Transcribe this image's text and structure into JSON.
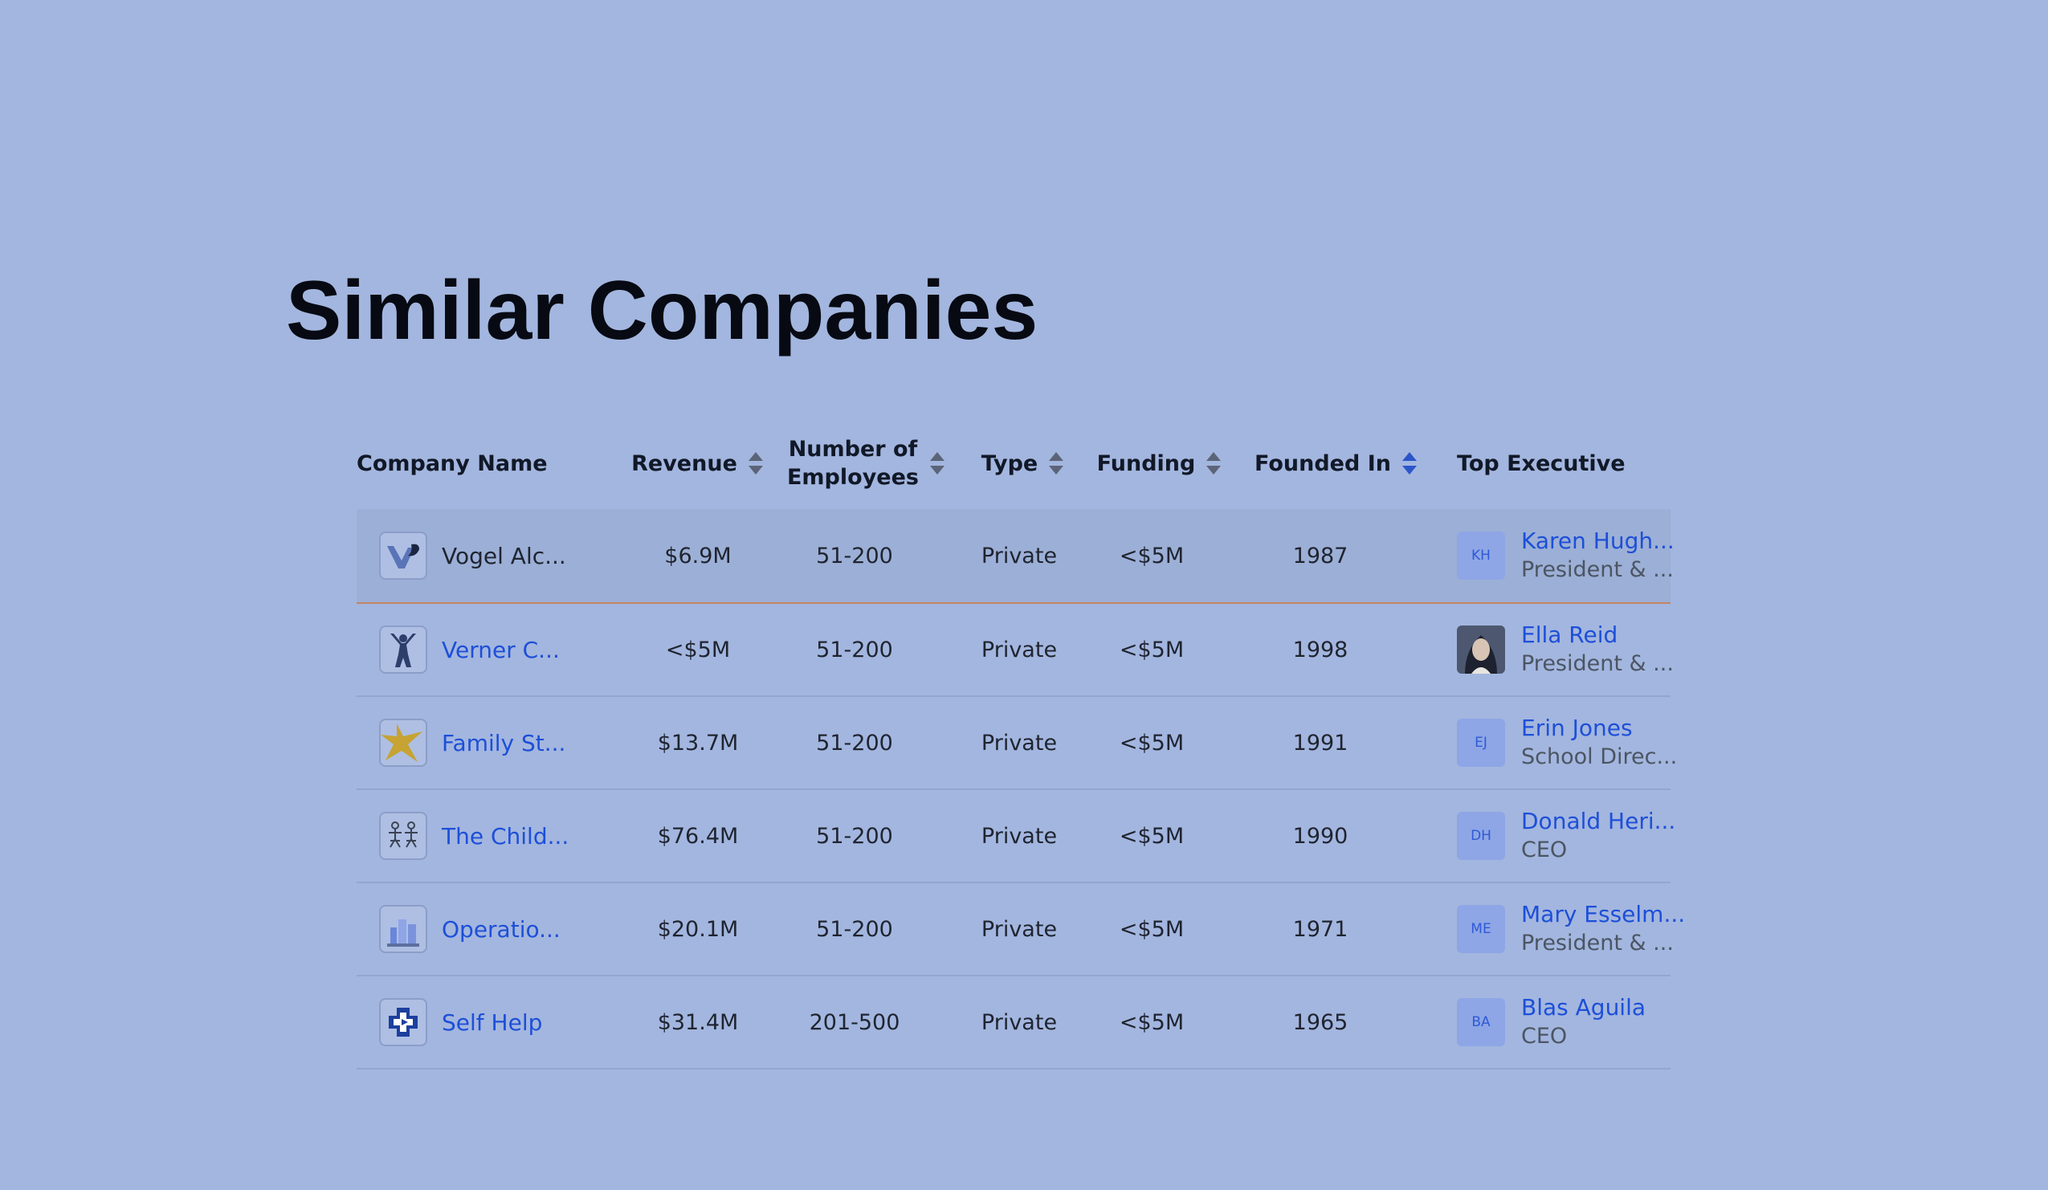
{
  "title": "Similar Companies",
  "colors": {
    "background": "#a3b6df",
    "link": "#1d4fd8",
    "row_highlight": "#9cafd6",
    "highlight_border": "#c48362"
  },
  "columns": [
    {
      "label": "Company Name",
      "sortable": false
    },
    {
      "label": "Revenue",
      "sortable": true
    },
    {
      "label": "Number of Employees",
      "line1": "Number of",
      "line2": "Employees",
      "sortable": true
    },
    {
      "label": "Type",
      "sortable": true
    },
    {
      "label": "Funding",
      "sortable": true
    },
    {
      "label": "Founded In",
      "sortable": true,
      "active": true
    },
    {
      "label": "Top Executive",
      "sortable": false
    }
  ],
  "rows": [
    {
      "company": "Vogel Alc...",
      "company_is_link": false,
      "logo": "vogel-logo-icon",
      "revenue": "$6.9M",
      "employees": "51-200",
      "type": "Private",
      "funding": "<$5M",
      "founded": "1987",
      "exec_initials": "KH",
      "exec_name": "Karen Hugh...",
      "exec_title": "President & ...",
      "exec_photo": false
    },
    {
      "company": "Verner C...",
      "company_is_link": true,
      "logo": "jumping-child-logo-icon",
      "revenue": "<$5M",
      "employees": "51-200",
      "type": "Private",
      "funding": "<$5M",
      "founded": "1998",
      "exec_initials": "",
      "exec_name": "Ella Reid",
      "exec_title": "President & ...",
      "exec_photo": true
    },
    {
      "company": "Family St...",
      "company_is_link": true,
      "logo": "star-logo-icon",
      "revenue": "$13.7M",
      "employees": "51-200",
      "type": "Private",
      "funding": "<$5M",
      "founded": "1991",
      "exec_initials": "EJ",
      "exec_name": "Erin Jones",
      "exec_title": "School Direc...",
      "exec_photo": false
    },
    {
      "company": "The Child...",
      "company_is_link": true,
      "logo": "children-figures-logo-icon",
      "revenue": "$76.4M",
      "employees": "51-200",
      "type": "Private",
      "funding": "<$5M",
      "founded": "1990",
      "exec_initials": "DH",
      "exec_name": "Donald Heri...",
      "exec_title": "CEO",
      "exec_photo": false
    },
    {
      "company": "Operatio...",
      "company_is_link": true,
      "logo": "building-logo-icon",
      "revenue": "$20.1M",
      "employees": "51-200",
      "type": "Private",
      "funding": "<$5M",
      "founded": "1971",
      "exec_initials": "ME",
      "exec_name": "Mary Esselm...",
      "exec_title": "President & ...",
      "exec_photo": false
    },
    {
      "company": "Self Help",
      "company_is_link": true,
      "logo": "cross-logo-icon",
      "revenue": "$31.4M",
      "employees": "201-500",
      "type": "Private",
      "funding": "<$5M",
      "founded": "1965",
      "exec_initials": "BA",
      "exec_name": "Blas Aguila",
      "exec_title": "CEO",
      "exec_photo": false
    }
  ]
}
